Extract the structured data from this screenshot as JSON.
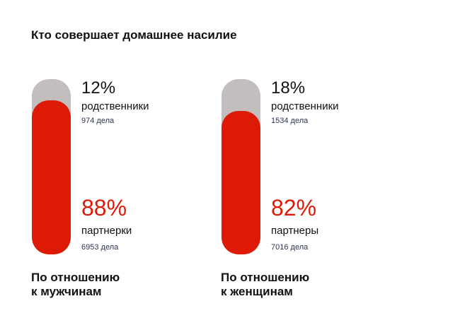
{
  "colors": {
    "relatives": "#c3bdbd",
    "partners": "#dd1a06"
  },
  "chart_data": {
    "type": "bar",
    "title": "Кто совершает домашнее насилие",
    "groups": [
      {
        "caption_line1": "По отношению",
        "caption_line2": "к мужчинам",
        "top": {
          "percent": 12,
          "percent_label": "12%",
          "label": "родственники",
          "count_label": "974 дела",
          "count": 974
        },
        "bottom": {
          "percent": 88,
          "percent_label": "88%",
          "label": "партнерки",
          "count_label": "6953 дела",
          "count": 6953
        }
      },
      {
        "caption_line1": "По отношению",
        "caption_line2": "к женщинам",
        "top": {
          "percent": 18,
          "percent_label": "18%",
          "label": "родственники",
          "count_label": "1534 дела",
          "count": 1534
        },
        "bottom": {
          "percent": 82,
          "percent_label": "82%",
          "label": "партнеры",
          "count_label": "7016 дела",
          "count": 7016
        }
      }
    ]
  }
}
